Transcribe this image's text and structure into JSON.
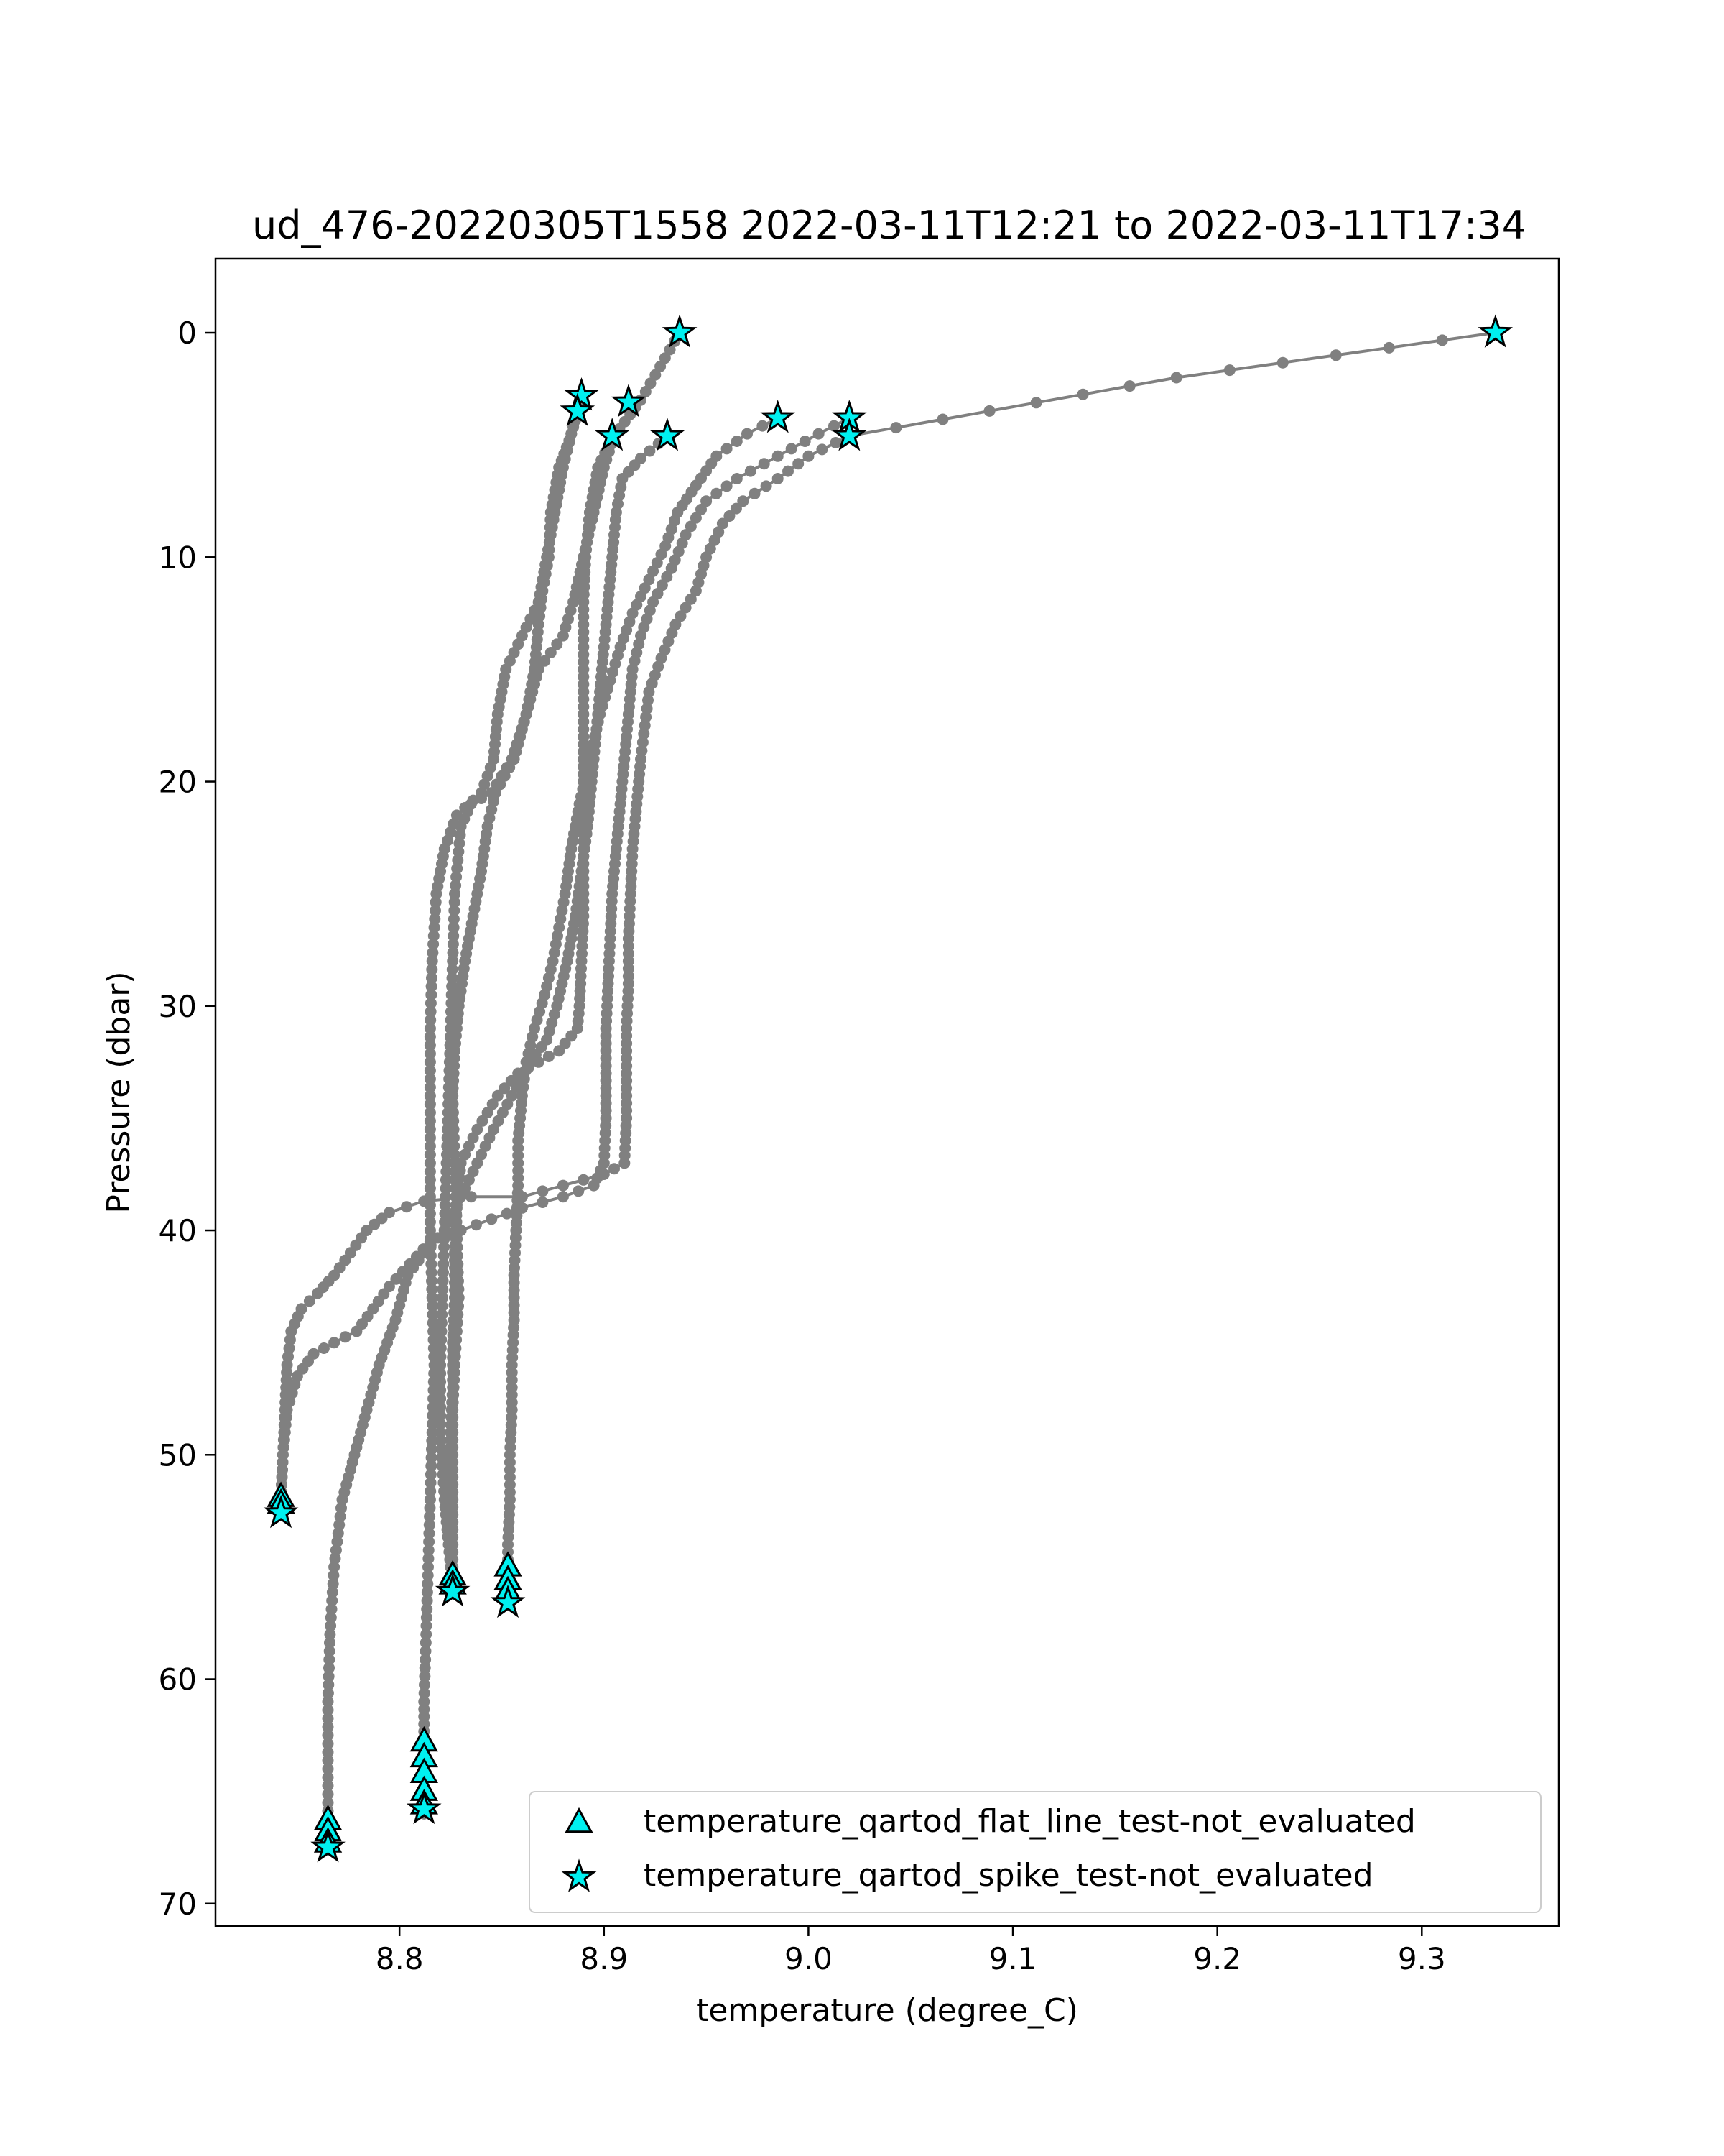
{
  "chart_data": {
    "type": "scatter",
    "title": "ud_476-20220305T1558 2022-03-11T12:21 to 2022-03-11T17:34",
    "xlabel": "temperature (degree_C)",
    "ylabel": "Pressure (dbar)",
    "xlim": [
      8.71,
      9.367
    ],
    "ylim": [
      71,
      -3.3
    ],
    "y_inverted": true,
    "grid": false,
    "x_ticks": [
      8.8,
      8.9,
      9.0,
      9.1,
      9.2,
      9.3
    ],
    "x_tick_labels": [
      "8.8",
      "8.9",
      "9.0",
      "9.1",
      "9.2",
      "9.3"
    ],
    "y_ticks": [
      0,
      10,
      20,
      30,
      40,
      50,
      60,
      70
    ],
    "y_tick_labels": [
      "0",
      "10",
      "20",
      "30",
      "40",
      "50",
      "60",
      "70"
    ],
    "legend_position": "lower-right",
    "profile_color": "#808080",
    "flag_color": "#00f0f0",
    "profiles": [
      [
        [
          8.937,
          0
        ],
        [
          8.918,
          3.0
        ],
        [
          8.905,
          4.6
        ],
        [
          8.9,
          6
        ],
        [
          8.895,
          8
        ],
        [
          8.89,
          10
        ],
        [
          8.885,
          12
        ],
        [
          8.88,
          13.5
        ],
        [
          8.868,
          15
        ],
        [
          8.862,
          17
        ],
        [
          8.855,
          19
        ],
        [
          8.845,
          20.5
        ],
        [
          8.835,
          21
        ],
        [
          8.83,
          22
        ],
        [
          8.827,
          25
        ],
        [
          8.826,
          28
        ],
        [
          8.825,
          31
        ],
        [
          8.824,
          34
        ],
        [
          8.823,
          37
        ],
        [
          8.822,
          40
        ],
        [
          8.821,
          43
        ],
        [
          8.82,
          46
        ],
        [
          8.82,
          49
        ],
        [
          8.822,
          52
        ],
        [
          8.824,
          54
        ],
        [
          8.826,
          56
        ]
      ],
      [
        [
          8.889,
          2.9
        ],
        [
          8.884,
          4.5
        ],
        [
          8.88,
          6
        ],
        [
          8.876,
          8
        ],
        [
          8.872,
          10
        ],
        [
          8.868,
          12
        ],
        [
          8.86,
          13.5
        ],
        [
          8.852,
          15
        ],
        [
          8.848,
          17
        ],
        [
          8.846,
          19
        ],
        [
          8.84,
          20.5
        ],
        [
          8.828,
          21.5
        ],
        [
          8.822,
          23
        ],
        [
          8.818,
          25
        ],
        [
          8.816,
          28
        ],
        [
          8.815,
          31
        ],
        [
          8.815,
          34
        ],
        [
          8.815,
          37
        ],
        [
          8.815,
          40
        ],
        [
          8.816,
          43
        ],
        [
          8.817,
          46
        ],
        [
          8.816,
          49
        ],
        [
          8.815,
          52
        ],
        [
          8.814,
          55
        ],
        [
          8.813,
          58
        ],
        [
          8.812,
          61
        ],
        [
          8.812,
          63
        ],
        [
          8.812,
          66
        ]
      ],
      [
        [
          8.887,
          3.6
        ],
        [
          8.883,
          4.8
        ],
        [
          8.878,
          6
        ],
        [
          8.874,
          8
        ],
        [
          8.873,
          10
        ],
        [
          8.87,
          11.5
        ],
        [
          8.868,
          13
        ],
        [
          8.866,
          15
        ],
        [
          8.862,
          17
        ],
        [
          8.856,
          19
        ],
        [
          8.847,
          20.5
        ],
        [
          8.843,
          22
        ],
        [
          8.84,
          24
        ],
        [
          8.836,
          26
        ],
        [
          8.832,
          28
        ],
        [
          8.829,
          30
        ],
        [
          8.827,
          32
        ],
        [
          8.826,
          34
        ],
        [
          8.827,
          37
        ],
        [
          8.828,
          40
        ],
        [
          8.829,
          43
        ],
        [
          8.827,
          46
        ],
        [
          8.826,
          48
        ],
        [
          8.826,
          50
        ],
        [
          8.826,
          52
        ],
        [
          8.826,
          54
        ],
        [
          8.826,
          56
        ]
      ],
      [
        [
          8.904,
          4.7
        ],
        [
          8.897,
          6
        ],
        [
          8.893,
          8
        ],
        [
          8.891,
          10
        ],
        [
          8.89,
          12
        ],
        [
          8.89,
          14
        ],
        [
          8.89,
          16
        ],
        [
          8.89,
          18
        ],
        [
          8.89,
          20
        ],
        [
          8.89,
          22
        ],
        [
          8.89,
          24
        ],
        [
          8.89,
          26
        ],
        [
          8.889,
          28
        ],
        [
          8.888,
          30
        ],
        [
          8.887,
          31
        ],
        [
          8.878,
          32
        ],
        [
          8.868,
          32.5
        ],
        [
          8.858,
          33
        ],
        [
          8.848,
          34
        ],
        [
          8.838,
          35.5
        ],
        [
          8.83,
          37
        ],
        [
          8.828,
          39
        ],
        [
          8.827,
          41
        ],
        [
          8.827,
          43
        ],
        [
          8.826,
          45
        ],
        [
          8.826,
          47
        ],
        [
          8.825,
          49
        ],
        [
          8.825,
          51
        ],
        [
          8.825,
          53
        ],
        [
          8.825,
          55
        ]
      ],
      [
        [
          8.931,
          4.6
        ],
        [
          8.918,
          5.6
        ],
        [
          8.909,
          6.5
        ],
        [
          8.906,
          8
        ],
        [
          8.904,
          10
        ],
        [
          8.902,
          12
        ],
        [
          8.9,
          14
        ],
        [
          8.898,
          16
        ],
        [
          8.896,
          18
        ],
        [
          8.894,
          20
        ],
        [
          8.892,
          22
        ],
        [
          8.889,
          24
        ],
        [
          8.886,
          26
        ],
        [
          8.882,
          28
        ],
        [
          8.877,
          30
        ],
        [
          8.872,
          31.5
        ],
        [
          8.864,
          32.5
        ],
        [
          8.855,
          34
        ],
        [
          8.846,
          35.5
        ],
        [
          8.838,
          37
        ],
        [
          8.83,
          38.5
        ],
        [
          8.822,
          40
        ],
        [
          8.812,
          41
        ],
        [
          8.804,
          42
        ],
        [
          8.798,
          44
        ],
        [
          8.79,
          46
        ],
        [
          8.784,
          48
        ],
        [
          8.778,
          50
        ],
        [
          8.772,
          52
        ],
        [
          8.768,
          55
        ],
        [
          8.766,
          58
        ],
        [
          8.765,
          61
        ],
        [
          8.765,
          64
        ],
        [
          8.765,
          67
        ]
      ],
      [
        [
          8.985,
          3.8
        ],
        [
          8.97,
          4.5
        ],
        [
          8.955,
          5.5
        ],
        [
          8.945,
          6.8
        ],
        [
          8.936,
          8
        ],
        [
          8.93,
          9.5
        ],
        [
          8.922,
          11
        ],
        [
          8.914,
          12.5
        ],
        [
          8.908,
          14
        ],
        [
          8.903,
          15.5
        ],
        [
          8.898,
          17
        ],
        [
          8.893,
          19
        ],
        [
          8.888,
          21
        ],
        [
          8.884,
          23
        ],
        [
          8.881,
          25
        ],
        [
          8.878,
          26.5
        ],
        [
          8.875,
          28
        ],
        [
          8.871,
          29.5
        ],
        [
          8.866,
          31
        ],
        [
          8.862,
          32.5
        ],
        [
          8.86,
          34
        ],
        [
          8.858,
          36
        ],
        [
          8.858,
          38
        ],
        [
          8.857,
          40
        ],
        [
          8.856,
          42
        ],
        [
          8.856,
          44
        ],
        [
          8.855,
          46
        ],
        [
          8.855,
          48
        ],
        [
          8.854,
          50
        ],
        [
          8.854,
          52
        ],
        [
          8.853,
          54
        ],
        [
          8.853,
          56
        ]
      ],
      [
        [
          9.02,
          3.8
        ],
        [
          9.005,
          4.5
        ],
        [
          8.985,
          5.5
        ],
        [
          8.965,
          6.5
        ],
        [
          8.95,
          7.5
        ],
        [
          8.94,
          9
        ],
        [
          8.933,
          10.5
        ],
        [
          8.924,
          12
        ],
        [
          8.918,
          13.5
        ],
        [
          8.914,
          15
        ],
        [
          8.912,
          17
        ],
        [
          8.91,
          19
        ],
        [
          8.908,
          21
        ],
        [
          8.906,
          23
        ],
        [
          8.904,
          25
        ],
        [
          8.903,
          27
        ],
        [
          8.902,
          29
        ],
        [
          8.901,
          31
        ],
        [
          8.901,
          33
        ],
        [
          8.901,
          35
        ],
        [
          8.9,
          37
        ],
        [
          8.895,
          38
        ],
        [
          8.88,
          38.5
        ],
        [
          8.86,
          39
        ],
        [
          8.845,
          39.5
        ],
        [
          8.83,
          40
        ],
        [
          8.815,
          40.5
        ],
        [
          8.805,
          41.5
        ],
        [
          8.795,
          42.5
        ],
        [
          8.787,
          43.5
        ],
        [
          8.779,
          44.5
        ],
        [
          8.768,
          45
        ],
        [
          8.758,
          45.5
        ],
        [
          8.75,
          46.5
        ],
        [
          8.745,
          48
        ],
        [
          8.743,
          50
        ],
        [
          8.742,
          52
        ],
        [
          8.742,
          52.6
        ]
      ],
      [
        [
          9.336,
          0
        ],
        [
          9.18,
          2.0
        ],
        [
          9.02,
          4.6
        ],
        [
          9.0,
          5.5
        ],
        [
          8.985,
          6.5
        ],
        [
          8.968,
          7.5
        ],
        [
          8.958,
          8.5
        ],
        [
          8.95,
          10
        ],
        [
          8.945,
          11.5
        ],
        [
          8.935,
          13
        ],
        [
          8.928,
          14.5
        ],
        [
          8.922,
          16
        ],
        [
          8.92,
          17.5
        ],
        [
          8.918,
          19
        ],
        [
          8.916,
          21
        ],
        [
          8.914,
          23
        ],
        [
          8.913,
          25
        ],
        [
          8.912,
          27
        ],
        [
          8.912,
          29
        ],
        [
          8.911,
          31
        ],
        [
          8.911,
          33
        ],
        [
          8.911,
          35
        ],
        [
          8.91,
          37
        ],
        [
          8.9,
          37.5
        ],
        [
          8.88,
          38
        ],
        [
          8.86,
          38.5
        ],
        [
          8.835,
          38.5
        ],
        [
          8.812,
          38.7
        ],
        [
          8.795,
          39.2
        ],
        [
          8.784,
          40
        ],
        [
          8.776,
          41
        ],
        [
          8.768,
          42
        ],
        [
          8.76,
          42.8
        ],
        [
          8.752,
          43.5
        ],
        [
          8.747,
          44.5
        ],
        [
          8.745,
          46
        ],
        [
          8.744,
          48
        ],
        [
          8.743,
          50
        ],
        [
          8.742,
          52
        ]
      ]
    ],
    "series": [
      {
        "name": "temperature_qartod_flat_line_test-not_evaluated",
        "marker": "triangle",
        "points": [
          [
            8.742,
            51.9
          ],
          [
            8.742,
            52.2
          ],
          [
            8.826,
            55.4
          ],
          [
            8.826,
            55.8
          ],
          [
            8.853,
            55.0
          ],
          [
            8.853,
            55.6
          ],
          [
            8.853,
            56.1
          ],
          [
            8.812,
            62.8
          ],
          [
            8.812,
            63.5
          ],
          [
            8.812,
            64.2
          ],
          [
            8.812,
            65.0
          ],
          [
            8.812,
            65.6
          ],
          [
            8.765,
            66.3
          ],
          [
            8.765,
            66.8
          ],
          [
            8.765,
            67.3
          ]
        ]
      },
      {
        "name": "temperature_qartod_spike_test-not_evaluated",
        "marker": "star",
        "points": [
          [
            8.937,
            0.0
          ],
          [
            9.336,
            0.0
          ],
          [
            8.889,
            2.8
          ],
          [
            8.912,
            3.1
          ],
          [
            8.887,
            3.5
          ],
          [
            8.985,
            3.8
          ],
          [
            9.02,
            3.8
          ],
          [
            8.904,
            4.6
          ],
          [
            8.931,
            4.6
          ],
          [
            9.02,
            4.6
          ],
          [
            8.742,
            52.6
          ],
          [
            8.826,
            56.1
          ],
          [
            8.853,
            56.6
          ],
          [
            8.812,
            65.8
          ],
          [
            8.765,
            67.5
          ]
        ]
      }
    ]
  }
}
